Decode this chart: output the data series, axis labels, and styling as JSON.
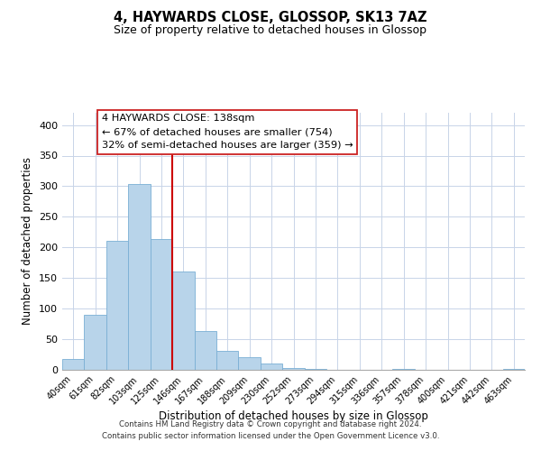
{
  "title": "4, HAYWARDS CLOSE, GLOSSOP, SK13 7AZ",
  "subtitle": "Size of property relative to detached houses in Glossop",
  "xlabel": "Distribution of detached houses by size in Glossop",
  "ylabel": "Number of detached properties",
  "bin_labels": [
    "40sqm",
    "61sqm",
    "82sqm",
    "103sqm",
    "125sqm",
    "146sqm",
    "167sqm",
    "188sqm",
    "209sqm",
    "230sqm",
    "252sqm",
    "273sqm",
    "294sqm",
    "315sqm",
    "336sqm",
    "357sqm",
    "378sqm",
    "400sqm",
    "421sqm",
    "442sqm",
    "463sqm"
  ],
  "bar_heights": [
    17,
    90,
    211,
    304,
    214,
    160,
    64,
    31,
    20,
    10,
    3,
    1,
    0,
    0,
    0,
    2,
    0,
    0,
    0,
    0,
    1
  ],
  "bar_color": "#b8d4ea",
  "bar_edge_color": "#7aafd4",
  "vline_x": 5,
  "vline_color": "#cc0000",
  "ylim": [
    0,
    420
  ],
  "yticks": [
    0,
    50,
    100,
    150,
    200,
    250,
    300,
    350,
    400
  ],
  "annotation_title": "4 HAYWARDS CLOSE: 138sqm",
  "annotation_line1": "← 67% of detached houses are smaller (754)",
  "annotation_line2": "32% of semi-detached houses are larger (359) →",
  "footer_line1": "Contains HM Land Registry data © Crown copyright and database right 2024.",
  "footer_line2": "Contains public sector information licensed under the Open Government Licence v3.0.",
  "background_color": "#ffffff",
  "grid_color": "#c8d4e8"
}
